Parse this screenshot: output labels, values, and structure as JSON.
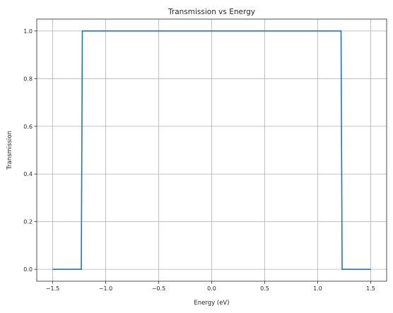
{
  "chart_data": {
    "type": "line",
    "title": "Transmission vs Energy",
    "xlabel": "Energy (eV)",
    "ylabel": "Transmission",
    "xlim": [
      -1.65,
      1.65
    ],
    "ylim": [
      -0.05,
      1.05
    ],
    "xticks": [
      -1.5,
      -1.0,
      -0.5,
      0.0,
      0.5,
      1.0,
      1.5
    ],
    "xtick_labels": [
      "−1.5",
      "−1.0",
      "−0.5",
      "0.0",
      "0.5",
      "1.0",
      "1.5"
    ],
    "yticks": [
      0.0,
      0.2,
      0.4,
      0.6,
      0.8,
      1.0
    ],
    "ytick_labels": [
      "0.0",
      "0.2",
      "0.4",
      "0.6",
      "0.8",
      "1.0"
    ],
    "grid": true,
    "series": [
      {
        "color": "#1f77b4",
        "x": [
          -1.5,
          -1.23,
          -1.22,
          1.22,
          1.23,
          1.5
        ],
        "y": [
          0.0,
          0.0,
          1.0,
          1.0,
          0.0,
          0.0
        ]
      }
    ]
  }
}
